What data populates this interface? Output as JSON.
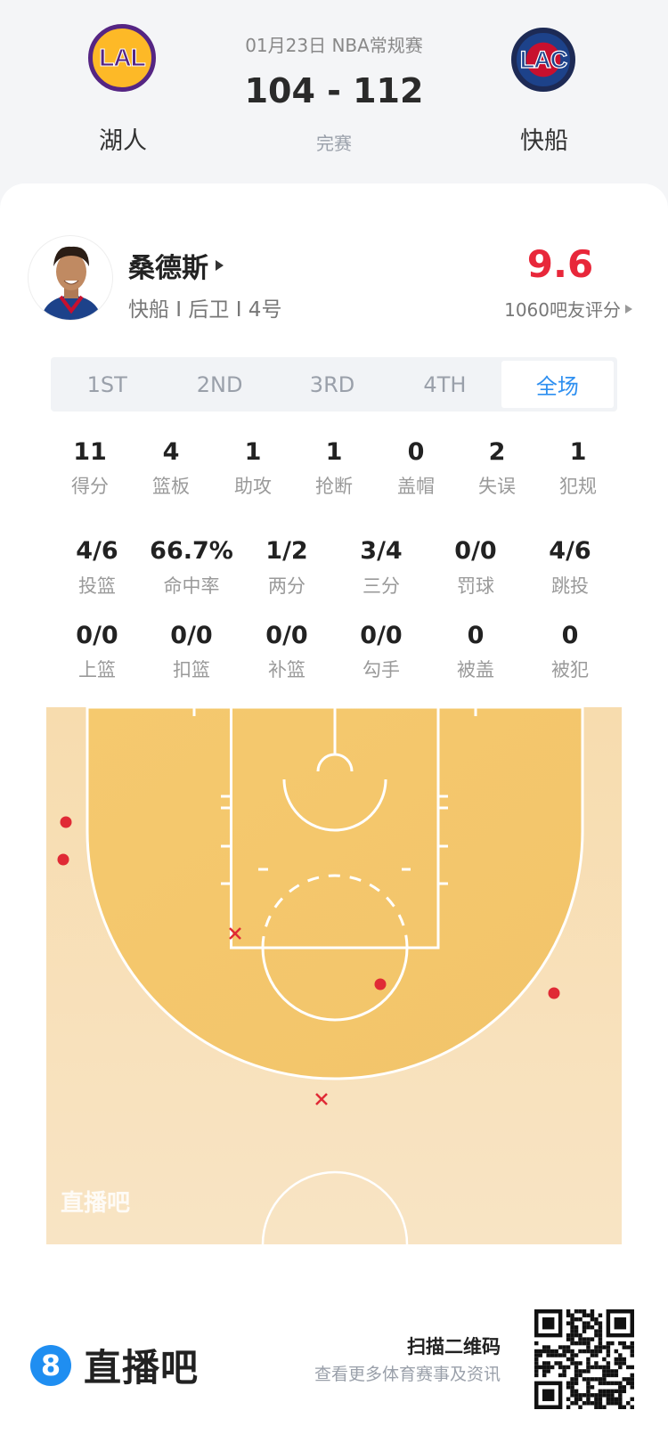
{
  "match": {
    "date_league": "01月23日 NBA常规赛",
    "score": "104 - 112",
    "status": "完赛",
    "home": {
      "name": "湖人",
      "abbr": "LAL",
      "colors": [
        "#fdb927",
        "#552583"
      ]
    },
    "away": {
      "name": "快船",
      "abbr": "LAC",
      "colors": [
        "#1d428a",
        "#c8102e"
      ]
    }
  },
  "player": {
    "name": "桑德斯",
    "info": "快船 I 后卫 I 4号",
    "rating": "9.6",
    "rating_label": "1060吧友评分",
    "rating_color": "#e8273a"
  },
  "tabs": [
    {
      "label": "1ST",
      "active": false
    },
    {
      "label": "2ND",
      "active": false
    },
    {
      "label": "3RD",
      "active": false
    },
    {
      "label": "4TH",
      "active": false
    },
    {
      "label": "全场",
      "active": true
    }
  ],
  "stats_row1": [
    {
      "value": "11",
      "label": "得分"
    },
    {
      "value": "4",
      "label": "篮板"
    },
    {
      "value": "1",
      "label": "助攻"
    },
    {
      "value": "1",
      "label": "抢断"
    },
    {
      "value": "0",
      "label": "盖帽"
    },
    {
      "value": "2",
      "label": "失误"
    },
    {
      "value": "1",
      "label": "犯规"
    }
  ],
  "stats_row2": [
    {
      "value": "4/6",
      "label": "投篮"
    },
    {
      "value": "66.7%",
      "label": "命中率"
    },
    {
      "value": "1/2",
      "label": "两分"
    },
    {
      "value": "3/4",
      "label": "三分"
    },
    {
      "value": "0/0",
      "label": "罚球"
    },
    {
      "value": "4/6",
      "label": "跳投"
    }
  ],
  "stats_row3": [
    {
      "value": "0/0",
      "label": "上篮"
    },
    {
      "value": "0/0",
      "label": "扣篮"
    },
    {
      "value": "0/0",
      "label": "补篮"
    },
    {
      "value": "0/0",
      "label": "勾手"
    },
    {
      "value": "0",
      "label": "被盖"
    },
    {
      "value": "0",
      "label": "被犯"
    }
  ],
  "shot_chart": {
    "watermark": "直播吧",
    "made_color": "#e02a35",
    "shots": [
      {
        "result": "made",
        "zone": "left corner three, upper"
      },
      {
        "result": "made",
        "zone": "left corner three, lower"
      },
      {
        "result": "made",
        "zone": "right free-throw circle"
      },
      {
        "result": "made",
        "zone": "right wing three"
      },
      {
        "result": "missed",
        "zone": "left elbow"
      },
      {
        "result": "missed",
        "zone": "top of key three"
      }
    ]
  },
  "footer": {
    "brand": "直播吧",
    "brand_mark": "8",
    "qr_title": "扫描二维码",
    "qr_subtitle": "查看更多体育赛事及资讯"
  }
}
